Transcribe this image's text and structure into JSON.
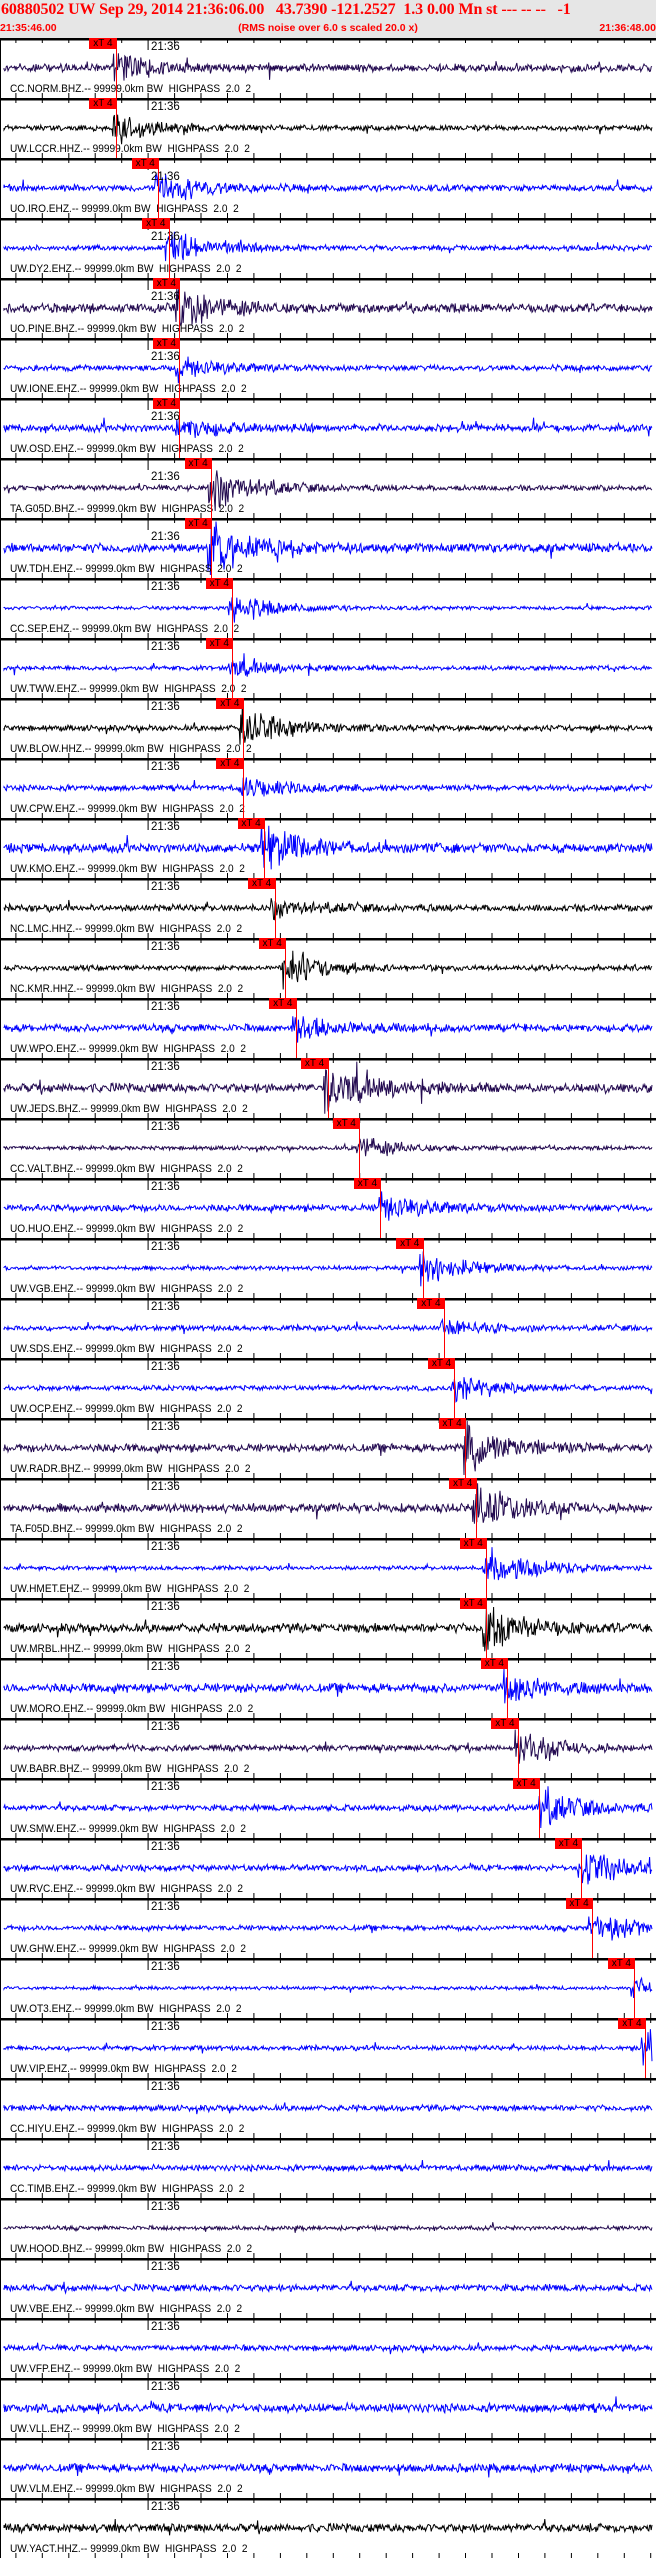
{
  "header": {
    "title": "60880502 UW Sep 29, 2014 21:36:06.00   43.7390 -121.2527  1.3 0.00 Mn st --- -- --   -1",
    "start_time": "21:35:46.00",
    "end_time": "21:36:48.00",
    "note": "(RMS noise over 6.0 s scaled 20.0 x)"
  },
  "time_mark_label": "21:36",
  "pick_label": "xT 4",
  "colors": {
    "EHZ": "#0000ff",
    "BHZ": "#230a50",
    "HHZ": "#000000",
    "pick": "#ff0000",
    "header_bg": "#e6e6e6"
  },
  "traces": [
    {
      "label": "CC.NORM.BHZ.-- 99999.0km BW  HIGHPASS  2.0  2",
      "channel": "BHZ",
      "pick": "21:35:57.0"
    },
    {
      "label": "UW.LCCR.HHZ.-- 99999.0km BW  HIGHPASS  2.0  2",
      "channel": "HHZ",
      "pick": "21:35:57.0"
    },
    {
      "label": "UO.IRO.EHZ.-- 99999.0km BW  HIGHPASS  2.0  2",
      "channel": "EHZ",
      "pick": "21:36:01.0"
    },
    {
      "label": "UW.DY2.EHZ.-- 99999.0km BW  HIGHPASS  2.0  2",
      "channel": "EHZ",
      "pick": "21:36:02.0"
    },
    {
      "label": "UO.PINE.BHZ.-- 99999.0km BW  HIGHPASS  2.0  2",
      "channel": "BHZ",
      "pick": "21:36:03.0"
    },
    {
      "label": "UW.IONE.EHZ.-- 99999.0km BW  HIGHPASS  2.0  2",
      "channel": "EHZ",
      "pick": "21:36:03.0"
    },
    {
      "label": "UW.OSD.EHZ.-- 99999.0km BW  HIGHPASS  2.0  2",
      "channel": "EHZ",
      "pick": "21:36:03.0"
    },
    {
      "label": "TA.G05D.BHZ.-- 99999.0km BW  HIGHPASS  2.0  2",
      "channel": "BHZ",
      "pick": "21:36:06.0"
    },
    {
      "label": "UW.TDH.EHZ.-- 99999.0km BW  HIGHPASS  2.0  2",
      "channel": "EHZ",
      "pick": "21:36:06.0"
    },
    {
      "label": "CC.SEP.EHZ.-- 99999.0km BW  HIGHPASS  2.0  2",
      "channel": "EHZ",
      "pick": "21:36:08.0"
    },
    {
      "label": "UW.TWW.EHZ.-- 99999.0km BW  HIGHPASS  2.0  2",
      "channel": "EHZ",
      "pick": "21:36:08.0"
    },
    {
      "label": "UW.BLOW.HHZ.-- 99999.0km BW  HIGHPASS  2.0  2",
      "channel": "HHZ",
      "pick": "21:36:09.0"
    },
    {
      "label": "UW.CPW.EHZ.-- 99999.0km BW  HIGHPASS  2.0  2",
      "channel": "EHZ",
      "pick": "21:36:09.0"
    },
    {
      "label": "UW.KMO.EHZ.-- 99999.0km BW  HIGHPASS  2.0  2",
      "channel": "EHZ",
      "pick": "21:36:11.0"
    },
    {
      "label": "NC.LMC.HHZ.-- 99999.0km BW  HIGHPASS  2.0  2",
      "channel": "HHZ",
      "pick": "21:36:12.0"
    },
    {
      "label": "NC.KMR.HHZ.-- 99999.0km BW  HIGHPASS  2.0  2",
      "channel": "HHZ",
      "pick": "21:36:13.0"
    },
    {
      "label": "UW.WPO.EHZ.-- 99999.0km BW  HIGHPASS  2.0  2",
      "channel": "EHZ",
      "pick": "21:36:14.0"
    },
    {
      "label": "UW.JEDS.BHZ.-- 99999.0km BW  HIGHPASS  2.0  2",
      "channel": "BHZ",
      "pick": "21:36:17.0"
    },
    {
      "label": "CC.VALT.BHZ.-- 99999.0km BW  HIGHPASS  2.0  2",
      "channel": "BHZ",
      "pick": "21:36:20.0"
    },
    {
      "label": "UO.HUO.EHZ.-- 99999.0km BW  HIGHPASS  2.0  2",
      "channel": "EHZ",
      "pick": "21:36:22.0"
    },
    {
      "label": "UW.VGB.EHZ.-- 99999.0km BW  HIGHPASS  2.0  2",
      "channel": "EHZ",
      "pick": "21:36:26.0"
    },
    {
      "label": "UW.SDS.EHZ.-- 99999.0km BW  HIGHPASS  2.0  2",
      "channel": "EHZ",
      "pick": "21:36:28.0"
    },
    {
      "label": "UW.OCP.EHZ.-- 99999.0km BW  HIGHPASS  2.0  2",
      "channel": "EHZ",
      "pick": "21:36:29.0"
    },
    {
      "label": "UW.RADR.BHZ.-- 99999.0km BW  HIGHPASS  2.0  2",
      "channel": "BHZ",
      "pick": "21:36:30.0"
    },
    {
      "label": "TA.F05D.BHZ.-- 99999.0km BW  HIGHPASS  2.0  2",
      "channel": "BHZ",
      "pick": "21:36:31.0"
    },
    {
      "label": "UW.HMET.EHZ.-- 99999.0km BW  HIGHPASS  2.0  2",
      "channel": "EHZ",
      "pick": "21:36:32.0"
    },
    {
      "label": "UW.MRBL.HHZ.-- 99999.0km BW  HIGHPASS  2.0  2",
      "channel": "HHZ",
      "pick": "21:36:32.0"
    },
    {
      "label": "UW.MORO.EHZ.-- 99999.0km BW  HIGHPASS  2.0  2",
      "channel": "EHZ",
      "pick": "21:36:34.0"
    },
    {
      "label": "UW.BABR.BHZ.-- 99999.0km BW  HIGHPASS  2.0  2",
      "channel": "BHZ",
      "pick": "21:36:35.0"
    },
    {
      "label": "UW.SMW.EHZ.-- 99999.0km BW  HIGHPASS  2.0  2",
      "channel": "EHZ",
      "pick": "21:36:37.0"
    },
    {
      "label": "UW.RVC.EHZ.-- 99999.0km BW  HIGHPASS  2.0  2",
      "channel": "EHZ",
      "pick": "21:36:41.0"
    },
    {
      "label": "UW.GHW.EHZ.-- 99999.0km BW  HIGHPASS  2.0  2",
      "channel": "EHZ",
      "pick": "21:36:42.0"
    },
    {
      "label": "UW.OT3.EHZ.-- 99999.0km BW  HIGHPASS  2.0  2",
      "channel": "EHZ",
      "pick": "21:36:46.0"
    },
    {
      "label": "UW.VIP.EHZ.-- 99999.0km BW  HIGHPASS  2.0  2",
      "channel": "EHZ",
      "pick": "21:36:47.0"
    },
    {
      "label": "CC.HIYU.EHZ.-- 99999.0km BW  HIGHPASS  2.0  2",
      "channel": "EHZ",
      "pick": null
    },
    {
      "label": "CC.TIMB.EHZ.-- 99999.0km BW  HIGHPASS  2.0  2",
      "channel": "EHZ",
      "pick": null
    },
    {
      "label": "UW.HOOD.BHZ.-- 99999.0km BW  HIGHPASS  2.0  2",
      "channel": "BHZ",
      "pick": null
    },
    {
      "label": "UW.VBE.EHZ.-- 99999.0km BW  HIGHPASS  2.0  2",
      "channel": "EHZ",
      "pick": null
    },
    {
      "label": "UW.VFP.EHZ.-- 99999.0km BW  HIGHPASS  2.0  2",
      "channel": "EHZ",
      "pick": null
    },
    {
      "label": "UW.VLL.EHZ.-- 99999.0km BW  HIGHPASS  2.0  2",
      "channel": "EHZ",
      "pick": null
    },
    {
      "label": "UW.VLM.EHZ.-- 99999.0km BW  HIGHPASS  2.0  2",
      "channel": "EHZ",
      "pick": null
    },
    {
      "label": "UW.YACT.HHZ.-- 99999.0km BW  HIGHPASS  2.0  2",
      "channel": "HHZ",
      "pick": null
    }
  ]
}
